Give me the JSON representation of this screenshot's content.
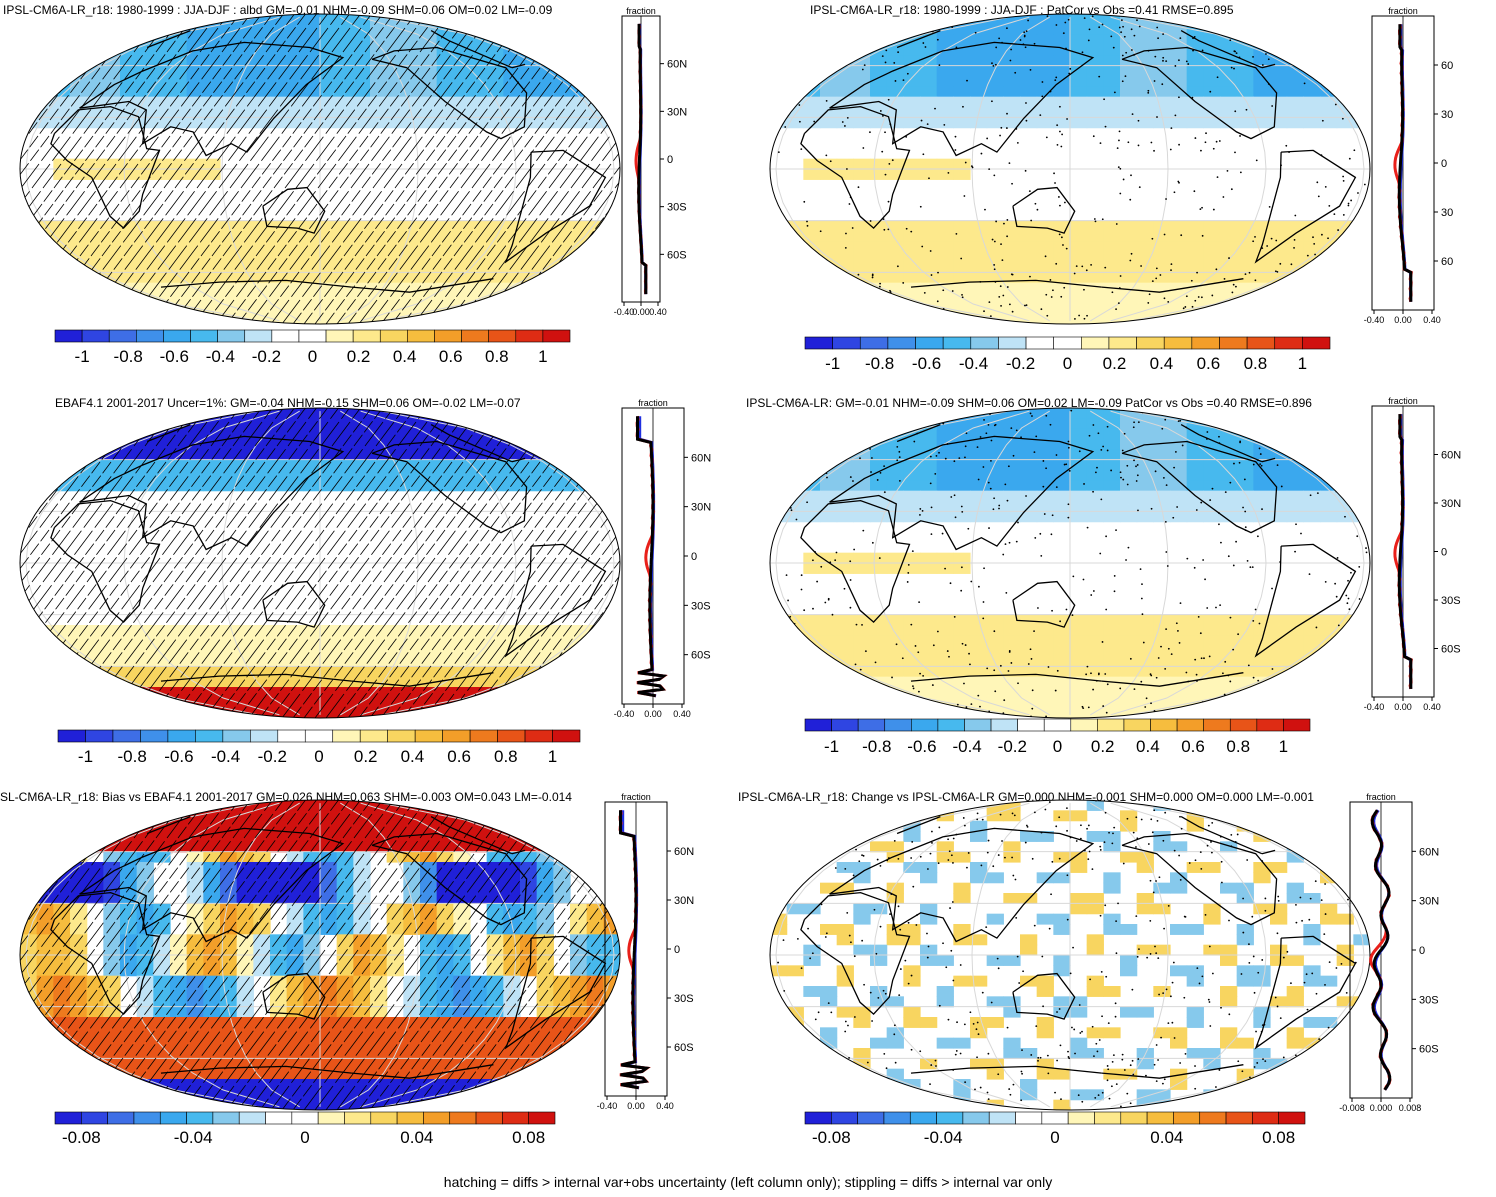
{
  "colors": {
    "scale": [
      "#2020d8",
      "#2f45e2",
      "#3e6ee6",
      "#3f90ea",
      "#3aa8ee",
      "#47b9ee",
      "#86c9ec",
      "#bfe3f6",
      "#ffffff",
      "#ffffff",
      "#fff6b8",
      "#fde98c",
      "#f8d560",
      "#f6bd3e",
      "#f39e29",
      "#ee7a1e",
      "#e85418",
      "#de2c14",
      "#d0110f"
    ],
    "ocean": "#ffffff",
    "coast": "#000000",
    "grid": "#d8d8d8",
    "model": "#1f2fe0",
    "obs": "#e8201a",
    "other": "#000000"
  },
  "panels": [
    {
      "id": "p1",
      "title": "IPSL-CM6A-LR_r18: 1980-1999 : JJA-DJF : albd GM=-0.01 NHM=-0.09 SHM=0.06 OM=0.02 LM=-0.09",
      "pattern": "hatch",
      "fields": "albedo_a",
      "profile": {
        "unit": "fraction",
        "x_ticks": [
          "-0.40",
          "0.00",
          "0.40"
        ],
        "lat_ticks": [
          "60N",
          "30N",
          "0",
          "30S",
          "60S"
        ],
        "ylabel_side": "right"
      },
      "colorbar": [
        "-1",
        "-0.8",
        "-0.6",
        "-0.4",
        "-0.2",
        "0",
        "0.2",
        "0.4",
        "0.6",
        "0.8",
        "1"
      ]
    },
    {
      "id": "p2",
      "title": "IPSL-CM6A-LR_r18: 1980-1999 : JJA-DJF : PatCor vs Obs =0.41 RMSE=0.895",
      "pattern": "stipple",
      "fields": "albedo_b",
      "profile": {
        "unit": "fraction",
        "x_ticks": [
          "-0.40",
          "0.00",
          "0.40"
        ],
        "lat_ticks": [
          "60",
          "30",
          "0",
          "30",
          "60"
        ],
        "ylabel_side": "right"
      },
      "colorbar": [
        "-1",
        "-0.8",
        "-0.6",
        "-0.4",
        "-0.2",
        "0",
        "0.2",
        "0.4",
        "0.6",
        "0.8",
        "1"
      ]
    },
    {
      "id": "p3",
      "title": "EBAF4.1 2001-2017 Uncer=1%: GM=-0.04 NHM=-0.15 SHM=0.06 OM=-0.02 LM=-0.07",
      "pattern": "hatch",
      "fields": "ebaf",
      "profile": {
        "unit": "fraction",
        "x_ticks": [
          "-0.40",
          "0.00",
          "0.40"
        ],
        "lat_ticks": [
          "60N",
          "30N",
          "0",
          "30S",
          "60S"
        ],
        "ylabel_side": "right"
      },
      "colorbar": [
        "-1",
        "-0.8",
        "-0.6",
        "-0.4",
        "-0.2",
        "0",
        "0.2",
        "0.4",
        "0.6",
        "0.8",
        "1"
      ]
    },
    {
      "id": "p4",
      "title": "IPSL-CM6A-LR: GM=-0.01 NHM=-0.09 SHM=0.06 OM=0.02 LM=-0.09 PatCor vs Obs =0.40 RMSE=0.896",
      "pattern": "stipple",
      "fields": "albedo_b",
      "profile": {
        "unit": "fraction",
        "x_ticks": [
          "-0.40",
          "0.00",
          "0.40"
        ],
        "lat_ticks": [
          "60N",
          "30N",
          "0",
          "30S",
          "60S"
        ],
        "ylabel_side": "right"
      },
      "colorbar": [
        "-1",
        "-0.8",
        "-0.6",
        "-0.4",
        "-0.2",
        "0",
        "0.2",
        "0.4",
        "0.6",
        "0.8",
        "1"
      ]
    },
    {
      "id": "p5",
      "title": "SL-CM6A-LR_r18: Bias vs EBAF4.1 2001-2017 GM=0.026 NHM=0.063 SHM=-0.003 OM=0.043 LM=-0.014",
      "pattern": "hatch",
      "fields": "bias",
      "profile": {
        "unit": "fraction",
        "x_ticks": [
          "-0.40",
          "0.00",
          "0.40"
        ],
        "lat_ticks": [
          "60N",
          "30N",
          "0",
          "30S",
          "60S"
        ],
        "ylabel_side": "right"
      },
      "colorbar": [
        "-0.08",
        "-0.04",
        "0",
        "0.04",
        "0.08"
      ]
    },
    {
      "id": "p6",
      "title": "IPSL-CM6A-LR_r18: Change vs IPSL-CM6A-LR GM=0.000 NHM=-0.001 SHM=0.000 OM=0.000 LM=-0.001",
      "pattern": "stipple",
      "fields": "change",
      "profile": {
        "unit": "fraction",
        "x_ticks": [
          "-0.008",
          "0.000",
          "0.008"
        ],
        "lat_ticks": [
          "60N",
          "30N",
          "0",
          "30S",
          "60S"
        ],
        "ylabel_side": "right"
      },
      "colorbar": [
        "-0.08",
        "-0.04",
        "0",
        "0.04",
        "0.08"
      ]
    }
  ],
  "footer": "hatching = diffs > internal var+obs uncertainty (left column only); stippling = diffs > internal var only",
  "chart_data": [
    {
      "type": "heatmap",
      "title": "IPSL-CM6A-LR_r18: 1980-1999 : JJA-DJF : albd GM=-0.01 NHM=-0.09 SHM=0.06 OM=0.02 LM=-0.09",
      "ylim": [
        -90,
        90
      ],
      "zonal_mean_profile": {
        "x_ticks": [
          -0.4,
          0.0,
          0.4
        ],
        "xlabel": "fraction"
      },
      "colorbar_range": [
        -1,
        1
      ]
    },
    {
      "type": "heatmap",
      "title": "IPSL-CM6A-LR_r18: 1980-1999 : JJA-DJF : PatCor vs Obs =0.41 RMSE=0.895",
      "ylim": [
        -90,
        90
      ],
      "zonal_mean_profile": {
        "x_ticks": [
          -0.4,
          0.0,
          0.4
        ],
        "xlabel": "fraction"
      },
      "colorbar_range": [
        -1,
        1
      ]
    },
    {
      "type": "heatmap",
      "title": "EBAF4.1 2001-2017 Uncer=1%: GM=-0.04 NHM=-0.15 SHM=0.06 OM=-0.02 LM=-0.07",
      "ylim": [
        -90,
        90
      ],
      "zonal_mean_profile": {
        "x_ticks": [
          -0.4,
          0.0,
          0.4
        ],
        "xlabel": "fraction"
      },
      "colorbar_range": [
        -1,
        1
      ]
    },
    {
      "type": "heatmap",
      "title": "IPSL-CM6A-LR: GM=-0.01 NHM=-0.09 SHM=0.06 OM=0.02 LM=-0.09 PatCor vs Obs =0.40 RMSE=0.896",
      "ylim": [
        -90,
        90
      ],
      "zonal_mean_profile": {
        "x_ticks": [
          -0.4,
          0.0,
          0.4
        ],
        "xlabel": "fraction"
      },
      "colorbar_range": [
        -1,
        1
      ]
    },
    {
      "type": "heatmap",
      "title": "SL-CM6A-LR_r18: Bias vs EBAF4.1 2001-2017 GM=0.026 NHM=0.063 SHM=-0.003 OM=0.043 LM=-0.014",
      "ylim": [
        -90,
        90
      ],
      "zonal_mean_profile": {
        "x_ticks": [
          -0.4,
          0.0,
          0.4
        ],
        "xlabel": "fraction"
      },
      "colorbar_range": [
        -0.1,
        0.1
      ]
    },
    {
      "type": "heatmap",
      "title": "IPSL-CM6A-LR_r18: Change vs IPSL-CM6A-LR GM=0.000 NHM=-0.001 SHM=0.000 OM=0.000 LM=-0.001",
      "ylim": [
        -90,
        90
      ],
      "zonal_mean_profile": {
        "x_ticks": [
          -0.008,
          0.0,
          0.008
        ],
        "xlabel": "fraction"
      },
      "colorbar_range": [
        -0.1,
        0.1
      ]
    }
  ]
}
